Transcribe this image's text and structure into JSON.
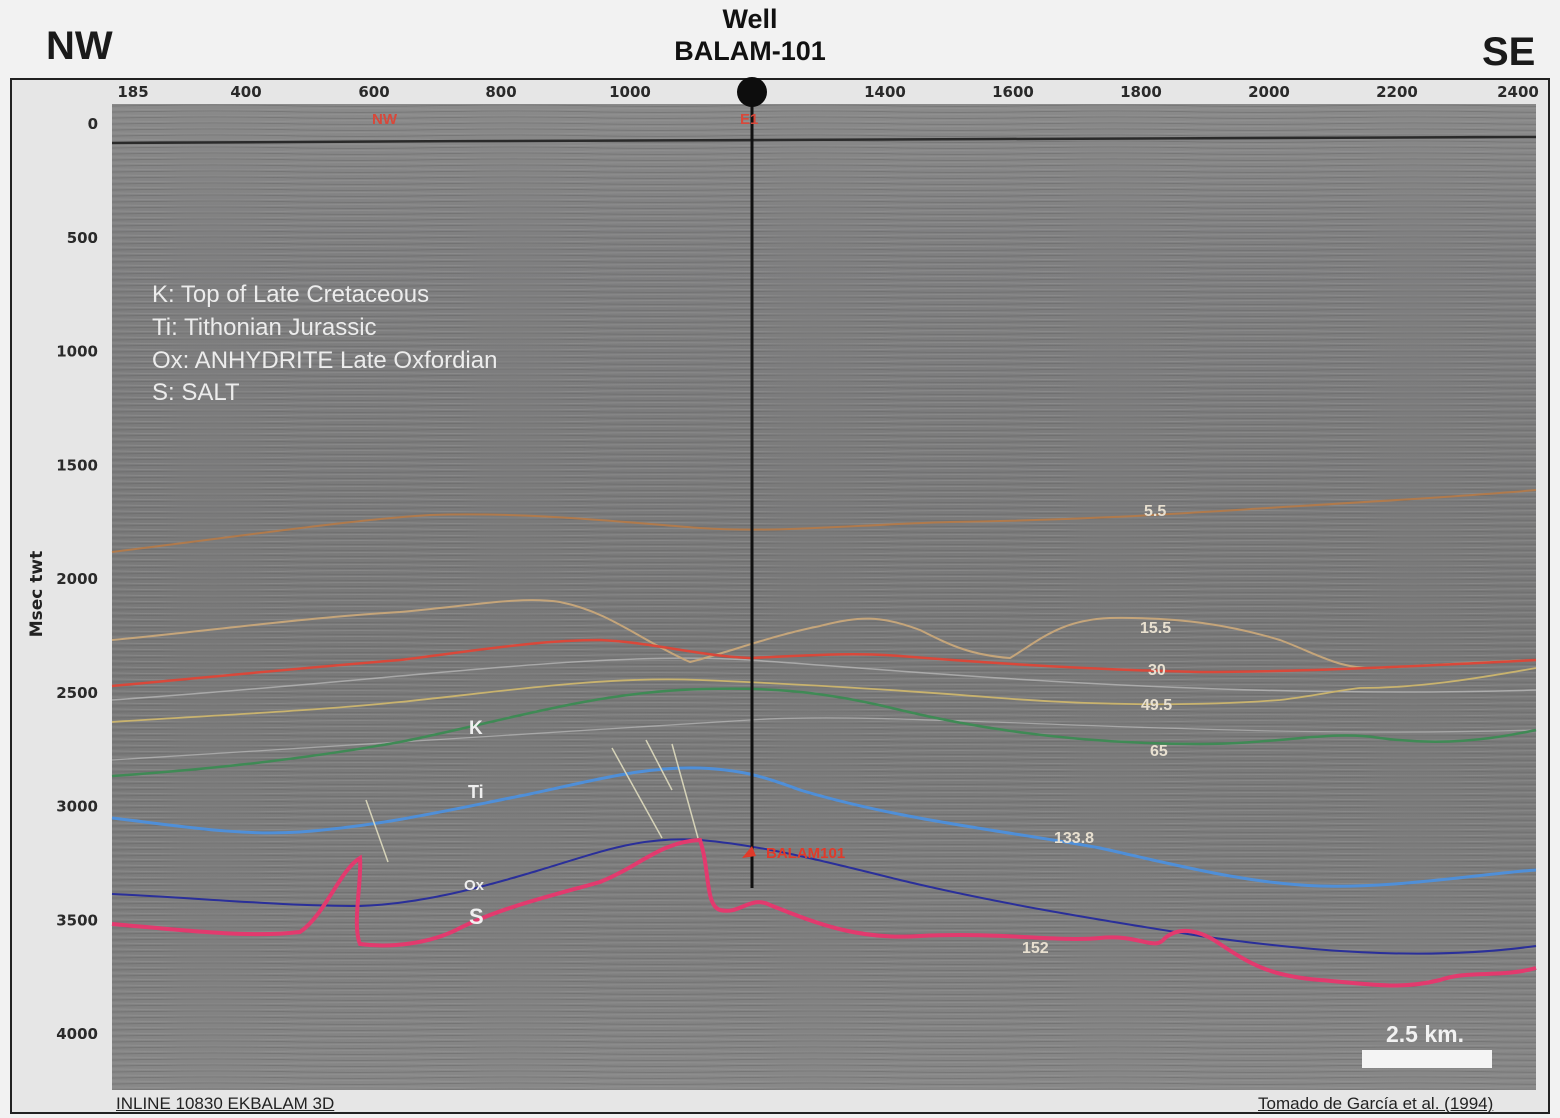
{
  "header": {
    "left_direction": "NW",
    "right_direction": "SE",
    "well_label": "Well",
    "well_name": "BALAM-101"
  },
  "axes": {
    "ylabel": "Msec twt",
    "x_ticks": [
      "185",
      "400",
      "600",
      "800",
      "1000",
      "1400",
      "1600",
      "1800",
      "2000",
      "2200",
      "2400"
    ],
    "y_ticks": [
      "0",
      "500",
      "1000",
      "1500",
      "2000",
      "2500",
      "3000",
      "3500",
      "4000"
    ]
  },
  "legend": {
    "items": [
      "K: Top of Late Cretaceous",
      "Ti: Tithonian Jurassic",
      "Ox: ANHYDRITE Late Oxfordian",
      "S: SALT"
    ]
  },
  "horizon_labels": [
    "5.5",
    "15.5",
    "30",
    "49.5",
    "65",
    "133.8",
    "152"
  ],
  "formation_codes": [
    "K",
    "Ti",
    "Ox",
    "S"
  ],
  "well_marker_label": "BALAM101",
  "scale_bar": {
    "label": "2.5 km."
  },
  "footer": {
    "left": "INLINE 10830  EKBALAM 3D",
    "right": "Tomado de García et al. (1994)"
  },
  "colors": {
    "seismic_background": "#7c7c7c",
    "horizon_5_5": "#b07a4c",
    "horizon_15_5": "#c5a57a",
    "horizon_30": "#d9483a",
    "horizon_49_5": "#c9b36e",
    "horizon_65": "#3f8a55",
    "horizon_133_8": "#4f8fd8",
    "horizon_ox": "#2a2f9a",
    "horizon_salt": "#e23a6e",
    "well_marker": "#e03a2a"
  }
}
